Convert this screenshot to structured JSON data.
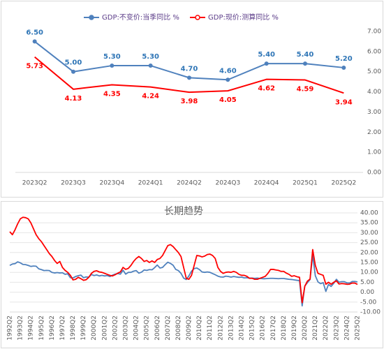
{
  "chart_data": [
    {
      "type": "line",
      "categories": [
        "2023Q2",
        "2023Q3",
        "2023Q4",
        "2024Q1",
        "2024Q2",
        "2024Q3",
        "2024Q4",
        "2025Q1",
        "2025Q2"
      ],
      "series": [
        {
          "name": "GDP:不变价:当季同比 %",
          "color": "#4f81bd",
          "label_color": "#2e75b6",
          "markers": true,
          "values": [
            6.5,
            5.0,
            5.3,
            5.3,
            4.7,
            4.6,
            5.4,
            5.4,
            5.2
          ],
          "value_labels": [
            "6.50",
            "5.00",
            "5.30",
            "5.30",
            "4.70",
            "4.60",
            "5.40",
            "5.40",
            "5.20"
          ]
        },
        {
          "name": "GDP:现价:测算同比 %",
          "color": "#ff0000",
          "label_color": "#ff0000",
          "markers": false,
          "values": [
            5.73,
            4.13,
            4.35,
            4.24,
            3.98,
            4.05,
            4.62,
            4.59,
            3.94
          ],
          "value_labels": [
            "5.73",
            "4.13",
            "4.35",
            "4.24",
            "3.98",
            "4.05",
            "4.62",
            "4.59",
            "3.94"
          ]
        }
      ],
      "ylim": [
        0,
        7
      ],
      "yticks": [
        {
          "value": 0,
          "label": "0.00"
        },
        {
          "value": 1,
          "label": "1.00"
        },
        {
          "value": 2,
          "label": "2.00"
        },
        {
          "value": 3,
          "label": "3.00"
        },
        {
          "value": 4,
          "label": "4.00"
        },
        {
          "value": 5,
          "label": "5.00"
        },
        {
          "value": 6,
          "label": "6.00"
        },
        {
          "value": 7,
          "label": "7.00"
        }
      ],
      "grid": false,
      "legend": "top"
    },
    {
      "type": "line",
      "title": "长期趋势",
      "categories": [
        "1992Q2",
        null,
        null,
        null,
        "1993Q2",
        null,
        null,
        null,
        "1994Q2",
        null,
        null,
        null,
        "1995Q2",
        null,
        null,
        null,
        "1996Q2",
        null,
        null,
        null,
        "1997Q2",
        null,
        null,
        null,
        "1998Q2",
        null,
        null,
        null,
        "1999Q2",
        null,
        null,
        null,
        "2000Q2",
        null,
        null,
        null,
        "2001Q2",
        null,
        null,
        null,
        "2002Q2",
        null,
        null,
        null,
        "2003Q2",
        null,
        null,
        null,
        "2004Q2",
        null,
        null,
        null,
        "2005Q2",
        null,
        null,
        null,
        "2006Q2",
        null,
        null,
        null,
        "2007Q2",
        null,
        null,
        null,
        "2008Q2",
        null,
        null,
        null,
        "2009Q2",
        null,
        null,
        null,
        "2010Q2",
        null,
        null,
        null,
        "2011Q2",
        null,
        null,
        null,
        "2012Q2",
        null,
        null,
        null,
        "2013Q2",
        null,
        null,
        null,
        "2014Q2",
        null,
        null,
        null,
        "2015Q2",
        null,
        null,
        null,
        "2016Q2",
        null,
        null,
        null,
        "2017Q2",
        null,
        null,
        null,
        "2018Q2",
        null,
        null,
        null,
        "2019Q2",
        null,
        null,
        null,
        "2020Q2",
        null,
        null,
        null,
        "2021Q2",
        null,
        null,
        null,
        "2022Q2",
        null,
        null,
        null,
        "2023Q2",
        null,
        null,
        null,
        "2024Q2",
        null,
        null,
        null,
        "2025Q2"
      ],
      "series": [
        {
          "color": "#4f81bd",
          "values": [
            13.5,
            14.2,
            14.4,
            15.3,
            14.8,
            14.0,
            13.9,
            13.5,
            13.0,
            13.2,
            13.1,
            11.8,
            11.4,
            10.9,
            11.0,
            10.9,
            10.0,
            9.7,
            9.9,
            9.7,
            9.8,
            9.0,
            9.3,
            7.3,
            7.2,
            7.9,
            8.3,
            8.6,
            7.3,
            7.7,
            7.6,
            8.9,
            8.4,
            8.7,
            8.2,
            8.5,
            8.2,
            8.4,
            7.9,
            8.6,
            9.1,
            9.4,
            9.1,
            11.1,
            9.1,
            10.0,
            10.0,
            10.6,
            10.9,
            9.6,
            10.1,
            11.2,
            11.0,
            11.4,
            11.3,
            12.4,
            13.7,
            12.2,
            12.5,
            13.9,
            15.1,
            14.5,
            13.6,
            11.5,
            10.9,
            9.5,
            7.1,
            6.4,
            8.2,
            10.6,
            11.9,
            12.2,
            11.4,
            10.2,
            10.0,
            10.2,
            10.0,
            9.4,
            8.8,
            8.1,
            7.7,
            7.6,
            8.1,
            7.9,
            7.6,
            7.9,
            7.7,
            7.5,
            7.6,
            7.2,
            7.3,
            7.1,
            7.1,
            7.0,
            7.1,
            6.9,
            6.8,
            6.8,
            6.9,
            7.0,
            7.0,
            6.9,
            6.8,
            6.9,
            6.9,
            6.7,
            6.5,
            6.4,
            6.2,
            6.0,
            5.8,
            -6.9,
            3.1,
            4.8,
            6.4,
            18.7,
            8.3,
            5.2,
            4.3,
            4.8,
            0.4,
            3.9,
            2.9,
            4.5,
            6.5,
            5.0,
            5.3,
            5.3,
            4.7,
            4.6,
            5.4,
            5.4,
            5.2
          ]
        },
        {
          "color": "#ff0000",
          "values": [
            30.5,
            29.0,
            31.5,
            34.5,
            37.0,
            37.8,
            37.6,
            37.0,
            35.0,
            32.0,
            29.0,
            27.0,
            25.5,
            23.5,
            21.5,
            19.5,
            18.0,
            16.0,
            14.5,
            15.5,
            12.5,
            11.0,
            10.0,
            8.5,
            6.2,
            6.5,
            7.5,
            6.8,
            6.0,
            6.3,
            7.5,
            9.5,
            10.5,
            10.8,
            10.2,
            10.0,
            9.5,
            9.0,
            8.5,
            8.2,
            8.8,
            9.6,
            10.2,
            12.5,
            11.5,
            12.0,
            13.5,
            15.5,
            17.0,
            18.0,
            17.0,
            15.5,
            16.0,
            15.0,
            15.8,
            15.0,
            16.5,
            17.0,
            18.5,
            21.0,
            23.5,
            24.0,
            23.0,
            21.5,
            20.0,
            18.0,
            12.5,
            7.0,
            6.5,
            8.5,
            13.5,
            18.5,
            18.3,
            17.8,
            18.2,
            19.0,
            19.2,
            18.5,
            17.0,
            12.5,
            10.5,
            9.5,
            10.0,
            10.2,
            10.0,
            10.5,
            10.0,
            9.0,
            8.5,
            8.5,
            8.0,
            7.0,
            7.0,
            6.5,
            6.5,
            7.0,
            7.5,
            8.0,
            9.5,
            11.5,
            11.5,
            11.2,
            11.0,
            10.5,
            10.5,
            9.6,
            9.0,
            8.0,
            8.3,
            7.8,
            7.5,
            -5.3,
            3.0,
            5.6,
            6.6,
            21.5,
            13.5,
            9.5,
            9.0,
            8.5,
            4.0,
            5.0,
            4.0,
            5.0,
            5.73,
            4.13,
            4.35,
            4.24,
            3.98,
            4.05,
            4.62,
            4.59,
            3.94
          ]
        }
      ],
      "ylim": [
        -10,
        40
      ],
      "yticks": [
        {
          "value": -10,
          "label": "-10.00"
        },
        {
          "value": -5,
          "label": "-5.00"
        },
        {
          "value": 0,
          "label": "0.00"
        },
        {
          "value": 5,
          "label": "5.00"
        },
        {
          "value": 10,
          "label": "10.00"
        },
        {
          "value": 15,
          "label": "15.00"
        },
        {
          "value": 20,
          "label": "20.00"
        },
        {
          "value": 25,
          "label": "25.00"
        },
        {
          "value": 30,
          "label": "30.00"
        },
        {
          "value": 35,
          "label": "35.00"
        },
        {
          "value": 40,
          "label": "40.00"
        }
      ],
      "grid": true
    }
  ]
}
